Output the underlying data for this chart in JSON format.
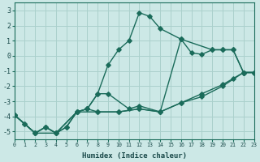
{
  "xlabel": "Humidex (Indice chaleur)",
  "bg_color": "#cce8e6",
  "grid_color": "#aad0cc",
  "line_color": "#1a6b5a",
  "xlim": [
    0,
    23
  ],
  "ylim": [
    -5.5,
    3.5
  ],
  "yticks": [
    -5,
    -4,
    -3,
    -2,
    -1,
    0,
    1,
    2,
    3
  ],
  "xticks": [
    0,
    1,
    2,
    3,
    4,
    5,
    6,
    7,
    8,
    9,
    10,
    11,
    12,
    13,
    14,
    15,
    16,
    17,
    18,
    19,
    20,
    21,
    22,
    23
  ],
  "lines": [
    {
      "x": [
        0,
        1,
        2,
        3,
        4,
        5,
        6,
        7,
        8,
        9,
        10,
        11,
        12,
        13,
        14,
        16,
        19,
        20,
        21,
        22,
        23
      ],
      "y": [
        -3.9,
        -4.5,
        -5.1,
        -4.7,
        -5.1,
        -4.7,
        -3.7,
        -3.5,
        -2.5,
        -0.6,
        0.4,
        1.0,
        2.85,
        2.6,
        1.8,
        1.1,
        0.4,
        0.4,
        0.4,
        -1.1,
        -1.1
      ]
    },
    {
      "x": [
        0,
        2,
        3,
        4,
        6,
        7,
        8,
        9,
        11,
        12,
        14,
        16,
        17,
        18,
        19,
        20,
        21,
        22,
        23
      ],
      "y": [
        -3.9,
        -5.1,
        -4.7,
        -5.1,
        -3.7,
        -3.5,
        -2.5,
        -2.5,
        -3.5,
        -3.3,
        -3.7,
        1.1,
        0.2,
        0.1,
        0.4,
        0.4,
        0.4,
        -1.1,
        -1.1
      ]
    },
    {
      "x": [
        0,
        1,
        2,
        3,
        4,
        5,
        6,
        7,
        8,
        10,
        12,
        14,
        16,
        18,
        20,
        21,
        22,
        23
      ],
      "y": [
        -3.9,
        -4.5,
        -5.1,
        -4.7,
        -5.1,
        -4.7,
        -3.7,
        -3.5,
        -3.7,
        -3.7,
        -3.5,
        -3.7,
        -3.1,
        -2.5,
        -1.9,
        -1.5,
        -1.1,
        -1.1
      ]
    },
    {
      "x": [
        0,
        2,
        4,
        6,
        8,
        10,
        12,
        14,
        16,
        18,
        20,
        22,
        23
      ],
      "y": [
        -3.9,
        -5.1,
        -5.1,
        -3.7,
        -3.7,
        -3.7,
        -3.5,
        -3.7,
        -3.1,
        -2.7,
        -2.0,
        -1.1,
        -1.1
      ]
    }
  ]
}
